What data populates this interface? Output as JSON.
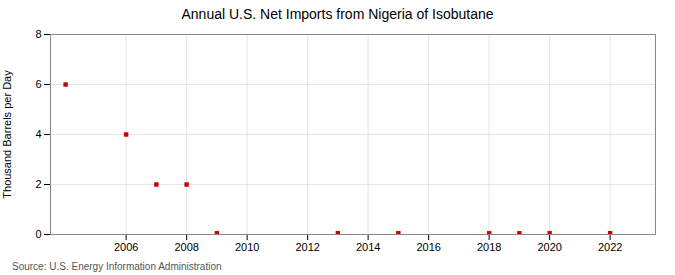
{
  "chart_data": {
    "type": "scatter",
    "title": "Annual U.S. Net Imports from Nigeria of Isobutane",
    "ylabel": "Thousand Barrels per Day",
    "source": "Source: U.S. Energy Information Administration",
    "x": [
      2004,
      2006,
      2007,
      2008,
      2009,
      2013,
      2015,
      2018,
      2019,
      2020,
      2022
    ],
    "values": [
      6,
      4,
      2,
      2,
      0.05,
      0.05,
      0.05,
      0.05,
      0.05,
      0.05,
      0.05
    ],
    "color": "#cc0000",
    "marker": "square",
    "xlim": [
      2003.5,
      2023.5
    ],
    "xticks": [
      2006,
      2008,
      2010,
      2012,
      2014,
      2016,
      2018,
      2020,
      2022
    ],
    "ylim": [
      0,
      8
    ],
    "yticks": [
      0,
      2,
      4,
      6,
      8
    ],
    "grid": true
  }
}
